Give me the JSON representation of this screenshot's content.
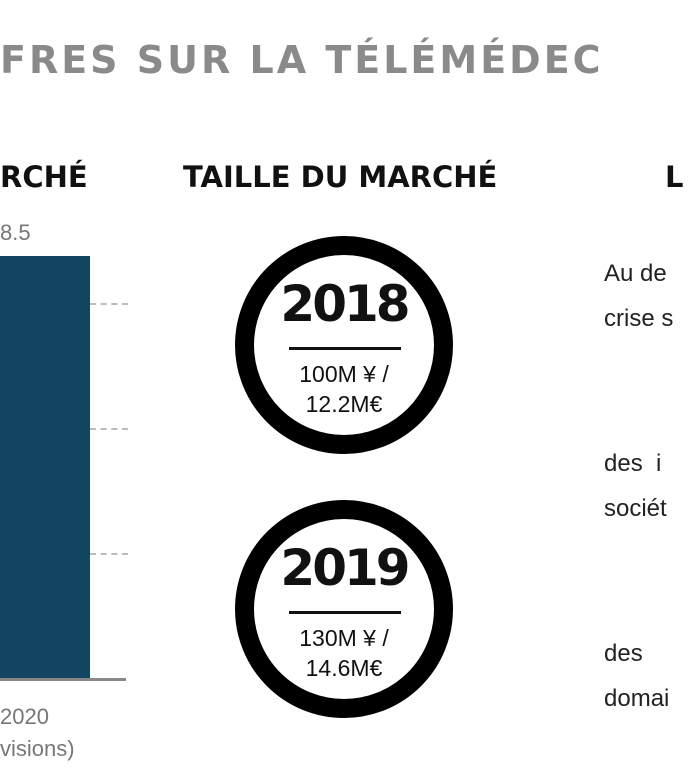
{
  "title": "FRES SUR LA TÉLÉMÉDEC",
  "left_column": {
    "header": "RCHÉ",
    "bar_value": "8.5",
    "x_label": "2020",
    "x_sublabel": "visions)",
    "bar_color": "#124560"
  },
  "middle_column": {
    "header": "TAILLE DU MARCHÉ",
    "items": [
      {
        "year": "2018",
        "line1": "100M ¥ /",
        "line2": "12.2M€"
      },
      {
        "year": "2019",
        "line1": "130M ¥ /",
        "line2": "14.6M€"
      }
    ]
  },
  "right_column": {
    "header": "L",
    "lines": [
      "Au de",
      "crise s",
      "des  i",
      "sociét",
      "des",
      "domai"
    ]
  }
}
